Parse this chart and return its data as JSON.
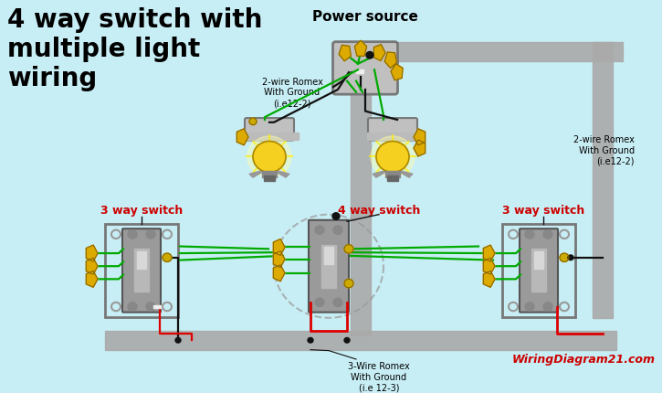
{
  "bg_color": "#c8eef5",
  "title_text": "4 way switch with\nmultiple light\nwiring",
  "title_color": "#000000",
  "title_fontsize": 20,
  "power_source_label": "Power source",
  "label_2wire_left": "2-wire Romex\nWith Ground\n(i.e12-2)",
  "label_2wire_right": "2-wire Romex\nWith Ground\n(i.e12-2)",
  "label_3wire": "3-Wire Romex\nWith Ground\n(i.e 12-3)",
  "label_3way_left": "3 way switch",
  "label_4way": "4 way switch",
  "label_3way_right": "3 way switch",
  "watermark": "WiringDiagram21.com",
  "switch_fill": "#9a9a9a",
  "switch_border": "#555555",
  "wire_black": "#111111",
  "wire_red": "#dd0000",
  "wire_green": "#00aa00",
  "wire_white": "#eeeeee",
  "conduit_color": "#aaaaaa",
  "light_bulb_color": "#f5d020",
  "terminal_color": "#ccaa00",
  "red_label_color": "#cc0000",
  "watermark_color": "#cc0000",
  "box_fill": "#c0c0c0",
  "box_border": "#777777"
}
